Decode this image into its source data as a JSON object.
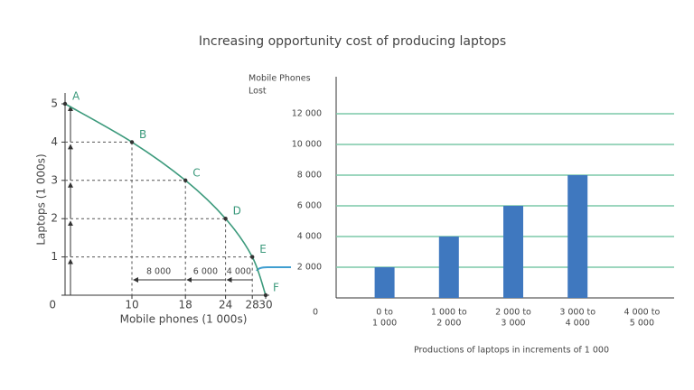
{
  "title": "Increasing opportunity cost of producing laptops",
  "chart_data": [
    {
      "type": "line",
      "x_label": "Mobile phones (1 000s)",
      "y_label": "Laptops (1 000s)",
      "x": [
        0,
        10,
        18,
        24,
        28,
        30
      ],
      "values": [
        5,
        4,
        3,
        2,
        1,
        0
      ],
      "point_labels": [
        "A",
        "B",
        "C",
        "D",
        "E",
        "F"
      ],
      "color": "#3c9a7c",
      "xlim": [
        0,
        30
      ],
      "xticks": [
        10,
        18,
        24,
        28,
        30
      ],
      "ylim": [
        0,
        5
      ],
      "yticks": [
        0,
        1,
        2,
        3,
        4,
        5
      ],
      "annotations": [
        {
          "x0": 10,
          "x1": 18,
          "label": "8 000"
        },
        {
          "x0": 18,
          "x1": 24,
          "label": "6 000"
        },
        {
          "x0": 24,
          "x1": 28,
          "label": "4 000"
        }
      ]
    },
    {
      "type": "bar",
      "y_label": [
        "Mobile Phones",
        "Lost"
      ],
      "x_label": "Productions of laptops in increments of 1 000",
      "categories": [
        [
          "0 to",
          "1 000"
        ],
        [
          "1 000 to",
          "2 000"
        ],
        [
          "2 000 to",
          "3 000"
        ],
        [
          "3 000 to",
          "4 000"
        ],
        [
          "4 000 to",
          "5 000"
        ]
      ],
      "values": [
        2000,
        4000,
        6000,
        8000,
        null
      ],
      "color": "#3f78bf",
      "grid_color": "#7cc8a8",
      "ylim": [
        0,
        14000
      ],
      "yticks": [
        0,
        {
          "value": 2000,
          "label": "2 000"
        },
        {
          "value": 4000,
          "label": "4 000"
        },
        {
          "value": 6000,
          "label": "6 000"
        },
        {
          "value": 8000,
          "label": "8 000"
        },
        {
          "value": 10000,
          "label": "10 000"
        },
        {
          "value": 12000,
          "label": "12 000"
        }
      ],
      "grid": true
    }
  ]
}
